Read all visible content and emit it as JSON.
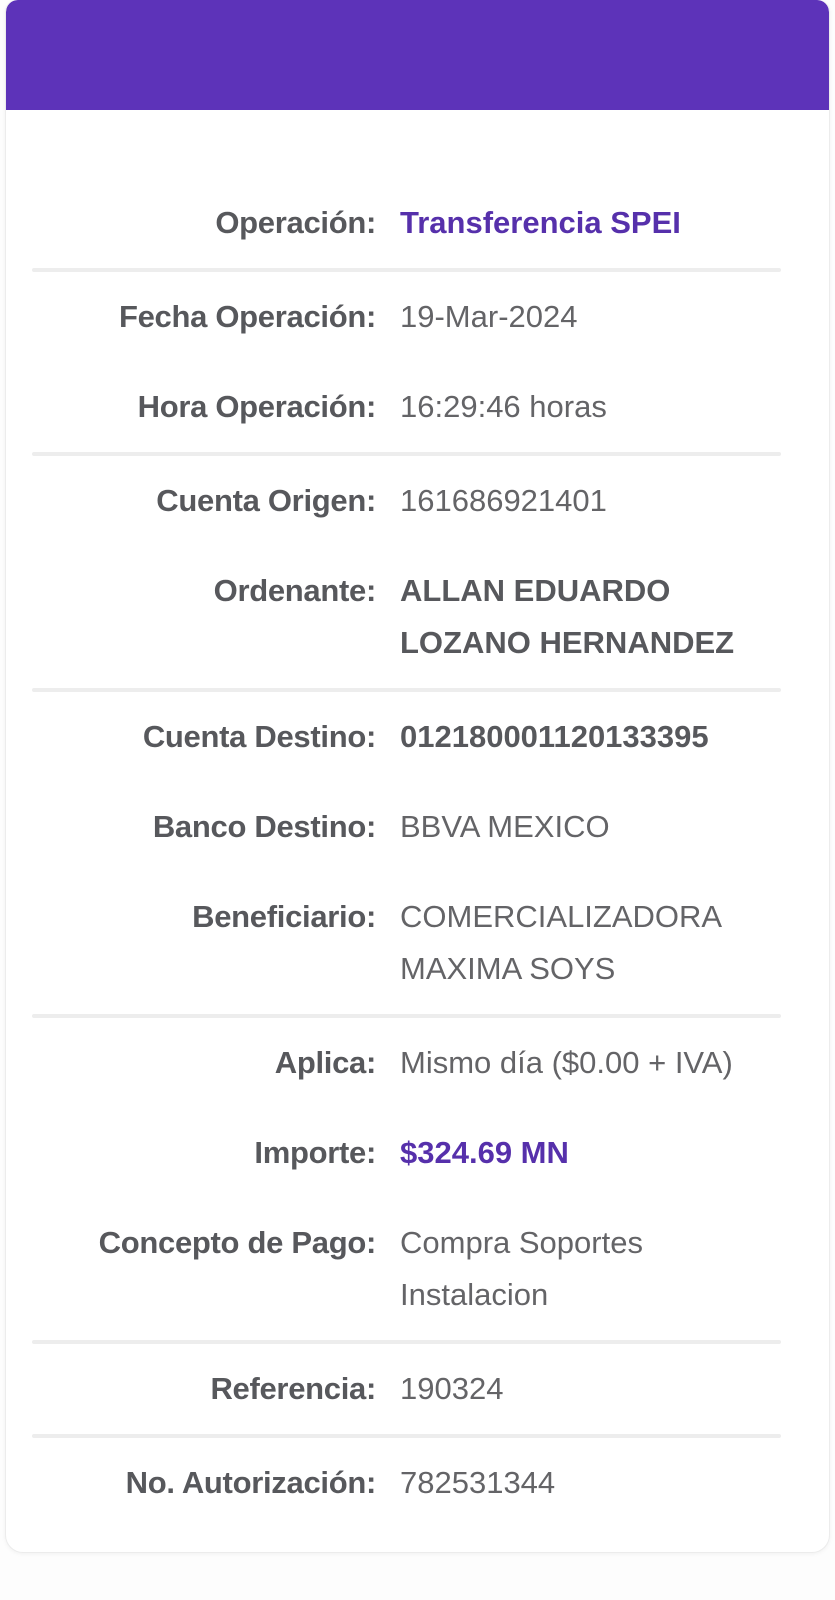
{
  "colors": {
    "header_purple": "#5d33b9",
    "accent_purple": "#5630ab",
    "label_gray": "#57585c",
    "value_gray": "#646467",
    "divider_gray": "#ededed",
    "card_background": "#ffffff"
  },
  "receipt": {
    "rows": [
      {
        "label": "Operación:",
        "value": "Transferencia SPEI",
        "style": "accent"
      },
      {
        "label": "Fecha Operación:",
        "value": "19-Mar-2024",
        "style": "normal"
      },
      {
        "label": "Hora Operación:",
        "value": "16:29:46 horas",
        "style": "normal"
      },
      {
        "label": "Cuenta Origen:",
        "value": "161686921401",
        "style": "normal"
      },
      {
        "label": "Ordenante:",
        "value": "ALLAN EDUARDO LOZANO HERNANDEZ",
        "style": "bold"
      },
      {
        "label": "Cuenta Destino:",
        "value": "012180001120133395",
        "style": "bold"
      },
      {
        "label": "Banco Destino:",
        "value": "BBVA MEXICO",
        "style": "normal"
      },
      {
        "label": "Beneficiario:",
        "value": "COMERCIALIZADORA MAXIMA SOYS",
        "style": "normal"
      },
      {
        "label": "Aplica:",
        "value": "Mismo día ($0.00 + IVA)",
        "style": "normal"
      },
      {
        "label": "Importe:",
        "value": "$324.69 MN",
        "style": "accent"
      },
      {
        "label": "Concepto de Pago:",
        "value": "Compra Soportes Instalacion",
        "style": "normal"
      },
      {
        "label": "Referencia:",
        "value": "190324",
        "style": "normal"
      },
      {
        "label": "No. Autorización:",
        "value": "782531344",
        "style": "normal"
      }
    ]
  }
}
